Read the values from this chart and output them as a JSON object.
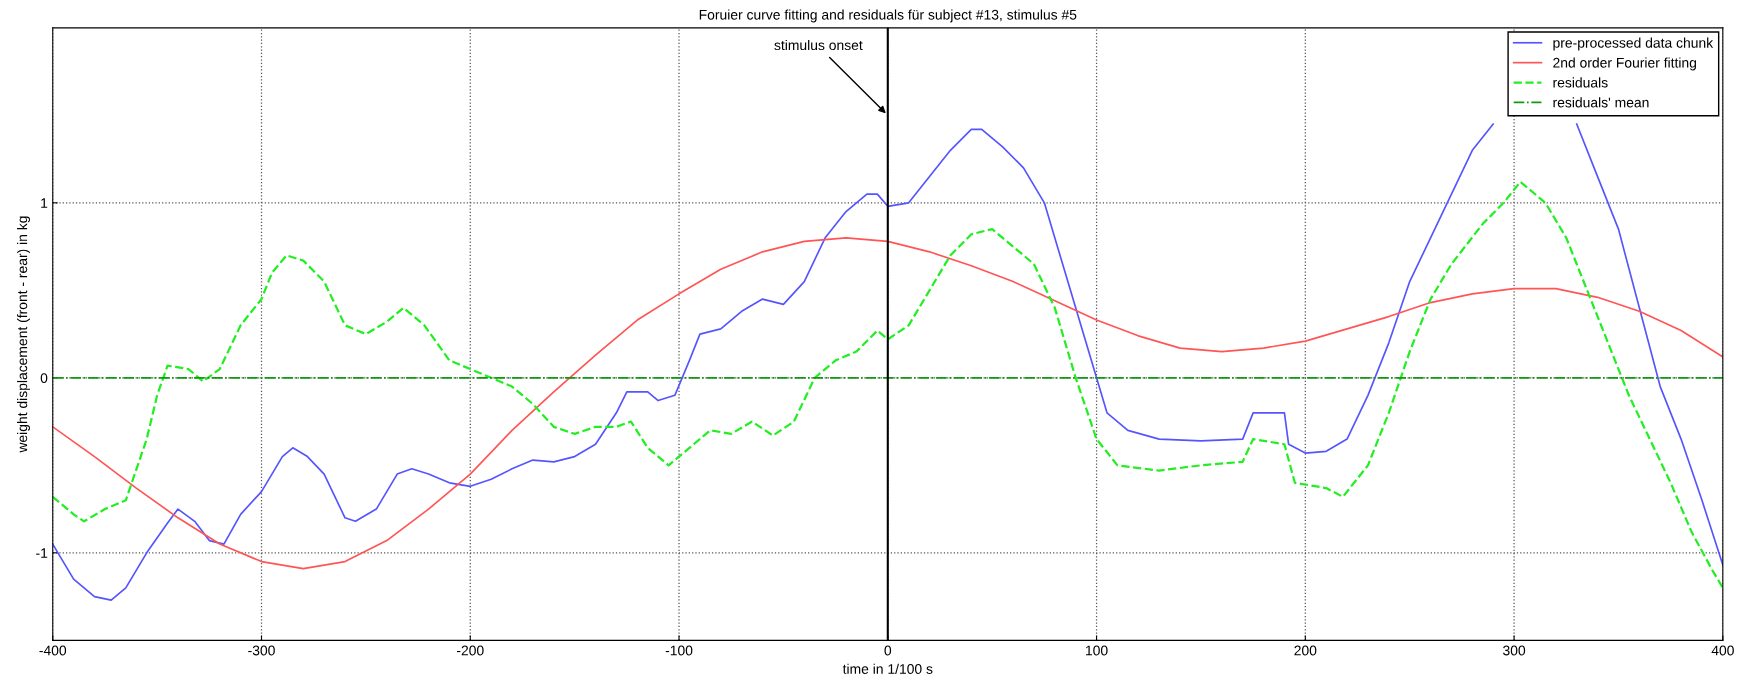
{
  "chart_data": {
    "type": "line",
    "title": "Foruier curve fitting and residuals für subject #13, stimulus #5",
    "xlabel": "time in 1/100 s",
    "ylabel": "weight displacement (front - rear) in kg",
    "xlim": [
      -400,
      400
    ],
    "xticks": [
      -400,
      -300,
      -200,
      -100,
      0,
      100,
      200,
      300,
      400
    ],
    "ylim": [
      -1.5,
      2
    ],
    "yticks": [
      -1,
      0,
      1
    ],
    "grid": true,
    "legend": "top right",
    "ref_lines": [
      {
        "axis": "x",
        "value": 0,
        "color": "#000000",
        "line_style": "solid"
      }
    ],
    "annotations": [
      {
        "text": "stimulus onset",
        "x": 0,
        "y": 1.5
      }
    ],
    "series": [
      {
        "name": "pre-processed data chunk",
        "color": "#5555ff",
        "line_style": "solid",
        "x": [
          -400,
          -390,
          -380,
          -372,
          -365,
          -355,
          -345,
          -340,
          -332,
          -325,
          -318,
          -310,
          -300,
          -290,
          -285,
          -278,
          -270,
          -260,
          -255,
          -245,
          -235,
          -228,
          -220,
          -210,
          -200,
          -190,
          -180,
          -170,
          -160,
          -150,
          -140,
          -130,
          -125,
          -115,
          -110,
          -102,
          -95,
          -90,
          -80,
          -70,
          -60,
          -50,
          -40,
          -30,
          -20,
          -10,
          -5,
          0,
          10,
          20,
          30,
          40,
          45,
          55,
          65,
          75,
          85,
          95,
          100,
          105,
          115,
          130,
          150,
          170,
          175,
          190,
          192,
          200,
          210,
          220,
          230,
          240,
          250,
          260,
          270,
          280,
          290,
          310,
          330,
          340,
          350,
          360,
          370,
          380,
          390,
          400
        ],
        "values": [
          -0.95,
          -1.15,
          -1.25,
          -1.27,
          -1.2,
          -1.0,
          -0.83,
          -0.75,
          -0.82,
          -0.93,
          -0.95,
          -0.78,
          -0.65,
          -0.45,
          -0.4,
          -0.45,
          -0.55,
          -0.8,
          -0.82,
          -0.75,
          -0.55,
          -0.52,
          -0.55,
          -0.6,
          -0.62,
          -0.58,
          -0.52,
          -0.47,
          -0.48,
          -0.45,
          -0.38,
          -0.2,
          -0.08,
          -0.08,
          -0.13,
          -0.1,
          0.1,
          0.25,
          0.28,
          0.38,
          0.45,
          0.42,
          0.55,
          0.8,
          0.95,
          1.05,
          1.05,
          0.98,
          1.0,
          1.15,
          1.3,
          1.42,
          1.42,
          1.32,
          1.2,
          1.0,
          0.6,
          0.2,
          0.0,
          -0.2,
          -0.3,
          -0.35,
          -0.36,
          -0.35,
          -0.2,
          -0.2,
          -0.38,
          -0.43,
          -0.42,
          -0.35,
          -0.1,
          0.2,
          0.55,
          0.8,
          1.05,
          1.3,
          1.45,
          null,
          1.45,
          1.15,
          0.85,
          0.4,
          -0.05,
          -0.35,
          -0.7,
          -1.07
        ]
      },
      {
        "name": "2nd order Fourier fitting",
        "color": "#ff5555",
        "line_style": "solid",
        "x": [
          -400,
          -380,
          -360,
          -340,
          -320,
          -300,
          -280,
          -260,
          -240,
          -220,
          -200,
          -180,
          -160,
          -140,
          -120,
          -100,
          -80,
          -60,
          -40,
          -20,
          0,
          20,
          40,
          60,
          80,
          100,
          120,
          140,
          160,
          180,
          200,
          220,
          240,
          260,
          280,
          300,
          320,
          340,
          360,
          380,
          400
        ],
        "values": [
          -0.28,
          -0.45,
          -0.63,
          -0.8,
          -0.95,
          -1.05,
          -1.09,
          -1.05,
          -0.93,
          -0.75,
          -0.55,
          -0.3,
          -0.08,
          0.13,
          0.33,
          0.48,
          0.62,
          0.72,
          0.78,
          0.8,
          0.78,
          0.72,
          0.64,
          0.55,
          0.44,
          0.33,
          0.24,
          0.17,
          0.15,
          0.17,
          0.21,
          0.28,
          0.35,
          0.43,
          0.48,
          0.51,
          0.51,
          0.46,
          0.38,
          0.27,
          0.12
        ]
      },
      {
        "name": "residuals",
        "color": "#22ee22",
        "line_style": "dashed",
        "x": [
          -400,
          -390,
          -385,
          -375,
          -365,
          -355,
          -350,
          -345,
          -335,
          -328,
          -320,
          -310,
          -300,
          -295,
          -288,
          -280,
          -270,
          -260,
          -250,
          -240,
          -232,
          -222,
          -210,
          -200,
          -190,
          -180,
          -170,
          -160,
          -150,
          -140,
          -130,
          -123,
          -115,
          -105,
          -95,
          -85,
          -75,
          -65,
          -55,
          -45,
          -35,
          -25,
          -15,
          -5,
          0,
          10,
          20,
          30,
          40,
          50,
          60,
          70,
          80,
          90,
          100,
          110,
          130,
          150,
          170,
          175,
          190,
          195,
          210,
          218,
          230,
          240,
          250,
          260,
          270,
          285,
          295,
          303,
          315,
          325,
          335,
          345,
          355,
          365,
          375,
          385,
          395,
          400
        ],
        "values": [
          -0.68,
          -0.78,
          -0.82,
          -0.75,
          -0.7,
          -0.35,
          -0.1,
          0.07,
          0.05,
          -0.02,
          0.05,
          0.3,
          0.45,
          0.6,
          0.7,
          0.67,
          0.55,
          0.3,
          0.25,
          0.32,
          0.4,
          0.3,
          0.1,
          0.05,
          0.0,
          -0.05,
          -0.15,
          -0.28,
          -0.32,
          -0.28,
          -0.28,
          -0.25,
          -0.4,
          -0.5,
          -0.4,
          -0.3,
          -0.32,
          -0.25,
          -0.33,
          -0.25,
          0.0,
          0.1,
          0.15,
          0.27,
          0.22,
          0.3,
          0.5,
          0.7,
          0.82,
          0.85,
          0.75,
          0.65,
          0.4,
          0.0,
          -0.35,
          -0.5,
          -0.53,
          -0.5,
          -0.48,
          -0.35,
          -0.38,
          -0.6,
          -0.63,
          -0.68,
          -0.5,
          -0.2,
          0.15,
          0.45,
          0.65,
          0.88,
          1.0,
          1.12,
          1.0,
          0.8,
          0.5,
          0.2,
          -0.1,
          -0.35,
          -0.6,
          -0.88,
          -1.1,
          -1.2
        ]
      },
      {
        "name": "residuals' mean",
        "color": "#119911",
        "line_style": "dashdot",
        "x": [
          -400,
          400
        ],
        "values": [
          0,
          0
        ]
      }
    ]
  }
}
